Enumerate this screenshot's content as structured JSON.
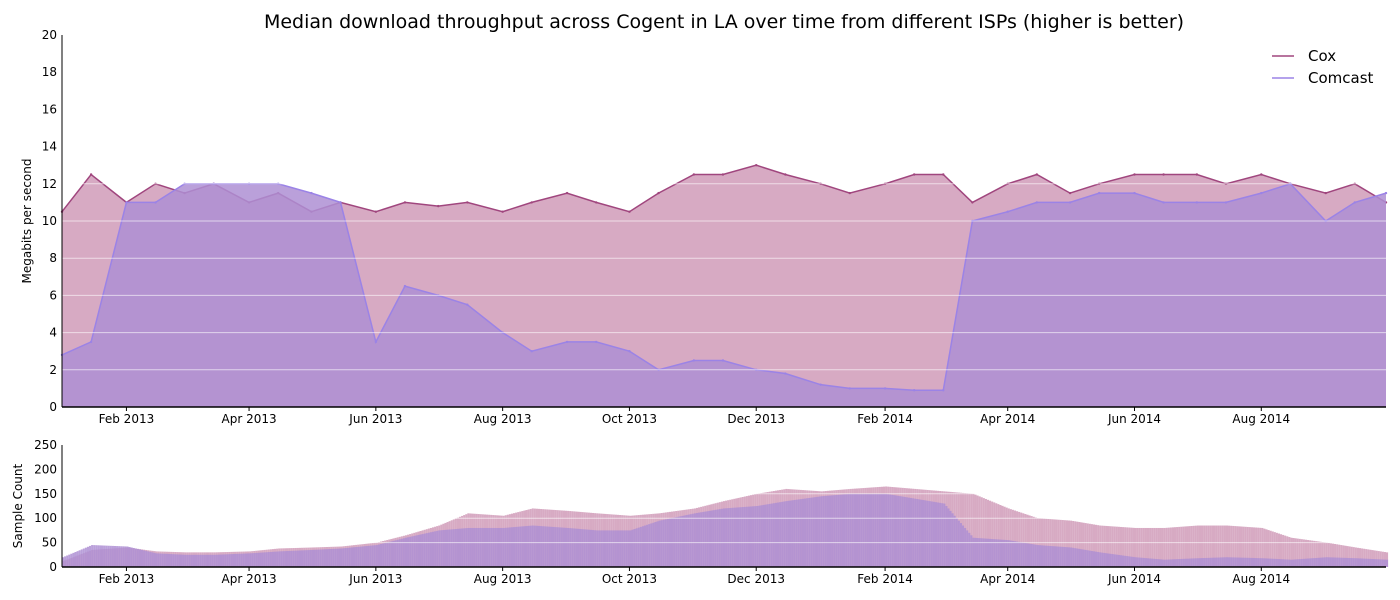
{
  "colors": {
    "cox": "#a0467e",
    "comcast": "#9b83e6",
    "cox_fill": "#d09bb8",
    "comcast_fill": "#ae8fd4",
    "grid": "#ffffff"
  },
  "chart_data": [
    {
      "type": "line",
      "fill": "area",
      "title": "Median download throughput across Cogent in LA over time from different ISPs (higher is better)",
      "ylabel": "Megabits per second",
      "xlabel": "",
      "x_range": [
        "2013-01-01",
        "2014-09-30"
      ],
      "ylim": [
        0,
        20
      ],
      "y_ticks": [
        0,
        2,
        4,
        6,
        8,
        10,
        12,
        14,
        16,
        18,
        20
      ],
      "x_ticks": [
        {
          "date": "2013-02-01",
          "label": "Feb 2013"
        },
        {
          "date": "2013-04-01",
          "label": "Apr 2013"
        },
        {
          "date": "2013-06-01",
          "label": "Jun 2013"
        },
        {
          "date": "2013-08-01",
          "label": "Aug 2013"
        },
        {
          "date": "2013-10-01",
          "label": "Oct 2013"
        },
        {
          "date": "2013-12-01",
          "label": "Dec 2013"
        },
        {
          "date": "2014-02-01",
          "label": "Feb 2014"
        },
        {
          "date": "2014-04-01",
          "label": "Apr 2014"
        },
        {
          "date": "2014-06-01",
          "label": "Jun 2014"
        },
        {
          "date": "2014-08-01",
          "label": "Aug 2014"
        }
      ],
      "grid": true,
      "legend": "top-right",
      "series": [
        {
          "name": "Cox",
          "x": [
            "2013-01-01",
            "2013-01-15",
            "2013-02-01",
            "2013-02-15",
            "2013-03-01",
            "2013-03-15",
            "2013-04-01",
            "2013-04-15",
            "2013-05-01",
            "2013-05-15",
            "2013-06-01",
            "2013-06-15",
            "2013-07-01",
            "2013-07-15",
            "2013-08-01",
            "2013-08-15",
            "2013-09-01",
            "2013-09-15",
            "2013-10-01",
            "2013-10-15",
            "2013-11-01",
            "2013-11-15",
            "2013-12-01",
            "2013-12-15",
            "2014-01-01",
            "2014-01-15",
            "2014-02-01",
            "2014-02-15",
            "2014-03-01",
            "2014-03-15",
            "2014-04-01",
            "2014-04-15",
            "2014-05-01",
            "2014-05-15",
            "2014-06-01",
            "2014-06-15",
            "2014-07-01",
            "2014-07-15",
            "2014-08-01",
            "2014-08-15",
            "2014-09-01",
            "2014-09-15",
            "2014-09-30"
          ],
          "values": [
            10.5,
            12.5,
            11.0,
            12.0,
            11.5,
            12.0,
            11.0,
            11.5,
            10.5,
            11.0,
            10.5,
            11.0,
            10.8,
            11.0,
            10.5,
            11.0,
            11.5,
            11.0,
            10.5,
            11.5,
            12.5,
            12.5,
            13.0,
            12.5,
            12.0,
            11.5,
            12.0,
            12.5,
            12.5,
            11.0,
            12.0,
            12.5,
            11.5,
            12.0,
            12.5,
            12.5,
            12.5,
            12.0,
            12.5,
            12.0,
            11.5,
            12.0,
            11.0
          ]
        },
        {
          "name": "Comcast",
          "x": [
            "2013-01-01",
            "2013-01-15",
            "2013-02-01",
            "2013-02-15",
            "2013-03-01",
            "2013-03-15",
            "2013-04-01",
            "2013-04-15",
            "2013-05-01",
            "2013-05-15",
            "2013-06-01",
            "2013-06-15",
            "2013-07-01",
            "2013-07-15",
            "2013-08-01",
            "2013-08-15",
            "2013-09-01",
            "2013-09-15",
            "2013-10-01",
            "2013-10-15",
            "2013-11-01",
            "2013-11-15",
            "2013-12-01",
            "2013-12-15",
            "2014-01-01",
            "2014-01-15",
            "2014-02-01",
            "2014-02-15",
            "2014-03-01",
            "2014-03-15",
            "2014-04-01",
            "2014-04-15",
            "2014-05-01",
            "2014-05-15",
            "2014-06-01",
            "2014-06-15",
            "2014-07-01",
            "2014-07-15",
            "2014-08-01",
            "2014-08-15",
            "2014-09-01",
            "2014-09-15",
            "2014-09-30"
          ],
          "values": [
            2.8,
            3.5,
            11.0,
            11.0,
            12.0,
            12.0,
            12.0,
            12.0,
            11.5,
            11.0,
            3.5,
            6.5,
            6.0,
            5.5,
            4.0,
            3.0,
            3.5,
            3.5,
            3.0,
            2.0,
            2.5,
            2.5,
            2.0,
            1.8,
            1.2,
            1.0,
            1.0,
            0.9,
            0.9,
            10.0,
            10.5,
            11.0,
            11.0,
            11.5,
            11.5,
            11.0,
            11.0,
            11.0,
            11.5,
            12.0,
            10.0,
            11.0,
            11.5
          ]
        }
      ]
    },
    {
      "type": "bar",
      "title": "",
      "ylabel": "Sample Count",
      "xlabel": "",
      "x_range": [
        "2013-01-01",
        "2014-09-30"
      ],
      "ylim": [
        0,
        250
      ],
      "y_ticks": [
        0,
        50,
        100,
        150,
        200,
        250
      ],
      "x_ticks": [
        {
          "date": "2013-02-01",
          "label": "Feb 2013"
        },
        {
          "date": "2013-04-01",
          "label": "Apr 2013"
        },
        {
          "date": "2013-06-01",
          "label": "Jun 2013"
        },
        {
          "date": "2013-08-01",
          "label": "Aug 2013"
        },
        {
          "date": "2013-10-01",
          "label": "Oct 2013"
        },
        {
          "date": "2013-12-01",
          "label": "Dec 2013"
        },
        {
          "date": "2014-02-01",
          "label": "Feb 2014"
        },
        {
          "date": "2014-04-01",
          "label": "Apr 2014"
        },
        {
          "date": "2014-06-01",
          "label": "Jun 2014"
        },
        {
          "date": "2014-08-01",
          "label": "Aug 2014"
        }
      ],
      "grid": true,
      "series": [
        {
          "name": "Cox",
          "x": [
            "2013-01-01",
            "2013-01-15",
            "2013-02-01",
            "2013-02-15",
            "2013-03-01",
            "2013-03-15",
            "2013-04-01",
            "2013-04-15",
            "2013-05-01",
            "2013-05-15",
            "2013-06-01",
            "2013-06-15",
            "2013-07-01",
            "2013-07-15",
            "2013-08-01",
            "2013-08-15",
            "2013-09-01",
            "2013-09-15",
            "2013-10-01",
            "2013-10-15",
            "2013-11-01",
            "2013-11-15",
            "2013-12-01",
            "2013-12-15",
            "2014-01-01",
            "2014-01-15",
            "2014-02-01",
            "2014-02-15",
            "2014-03-01",
            "2014-03-15",
            "2014-04-01",
            "2014-04-15",
            "2014-05-01",
            "2014-05-15",
            "2014-06-01",
            "2014-06-15",
            "2014-07-01",
            "2014-07-15",
            "2014-08-01",
            "2014-08-15",
            "2014-09-01",
            "2014-09-15",
            "2014-09-30"
          ],
          "values": [
            12,
            35,
            40,
            32,
            30,
            30,
            32,
            38,
            40,
            42,
            50,
            65,
            85,
            110,
            105,
            120,
            115,
            110,
            105,
            110,
            120,
            135,
            150,
            160,
            155,
            160,
            165,
            160,
            155,
            150,
            120,
            100,
            95,
            85,
            80,
            80,
            85,
            85,
            80,
            60,
            50,
            40,
            30
          ]
        },
        {
          "name": "Comcast",
          "x": [
            "2013-01-01",
            "2013-01-15",
            "2013-02-01",
            "2013-02-15",
            "2013-03-01",
            "2013-03-15",
            "2013-04-01",
            "2013-04-15",
            "2013-05-01",
            "2013-05-15",
            "2013-06-01",
            "2013-06-15",
            "2013-07-01",
            "2013-07-15",
            "2013-08-01",
            "2013-08-15",
            "2013-09-01",
            "2013-09-15",
            "2013-10-01",
            "2013-10-15",
            "2013-11-01",
            "2013-11-15",
            "2013-12-01",
            "2013-12-15",
            "2014-01-01",
            "2014-01-15",
            "2014-02-01",
            "2014-02-15",
            "2014-03-01",
            "2014-03-15",
            "2014-04-01",
            "2014-04-15",
            "2014-05-01",
            "2014-05-15",
            "2014-06-01",
            "2014-06-15",
            "2014-07-01",
            "2014-07-15",
            "2014-08-01",
            "2014-08-15",
            "2014-09-01",
            "2014-09-15",
            "2014-09-30"
          ],
          "values": [
            20,
            45,
            42,
            28,
            25,
            25,
            28,
            32,
            35,
            38,
            45,
            60,
            75,
            80,
            80,
            85,
            80,
            75,
            75,
            95,
            110,
            120,
            125,
            135,
            145,
            150,
            150,
            140,
            130,
            60,
            55,
            45,
            40,
            30,
            20,
            15,
            18,
            20,
            18,
            15,
            20,
            18,
            15
          ]
        }
      ]
    }
  ],
  "legend": {
    "items": [
      {
        "label": "Cox"
      },
      {
        "label": "Comcast"
      }
    ]
  }
}
